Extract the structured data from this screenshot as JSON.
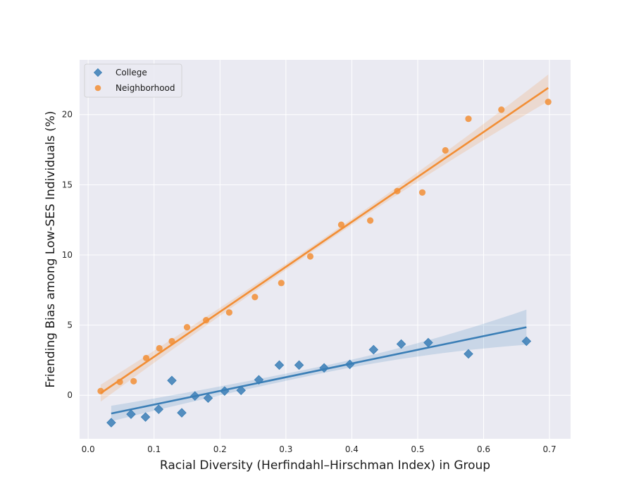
{
  "colors": {
    "background": "#eaeaf2",
    "grid": "#ffffff",
    "college": "#3a7eb6",
    "neighborhood": "#f28e35"
  },
  "chart_data": {
    "type": "scatter",
    "title": "",
    "xlabel": "Racial Diversity (Herfindahl–Hirschman Index) in Group",
    "ylabel": "Friending Bias among Low-SES Individuals (%)",
    "xlim": [
      -0.013,
      0.732
    ],
    "ylim": [
      -3.1,
      23.9
    ],
    "xticks": [
      0.0,
      0.1,
      0.2,
      0.3,
      0.4,
      0.5,
      0.6,
      0.7
    ],
    "xtick_labels": [
      "0.0",
      "0.1",
      "0.2",
      "0.3",
      "0.4",
      "0.5",
      "0.6",
      "0.7"
    ],
    "yticks": [
      0,
      5,
      10,
      15,
      20
    ],
    "ytick_labels": [
      "0",
      "5",
      "10",
      "15",
      "20"
    ],
    "grid": true,
    "legend_position": "top-left",
    "series": [
      {
        "name": "College",
        "marker": "diamond",
        "color": "#3a7eb6",
        "points": [
          [
            0.035,
            -1.95
          ],
          [
            0.065,
            -1.35
          ],
          [
            0.087,
            -1.55
          ],
          [
            0.107,
            -1.0
          ],
          [
            0.127,
            1.05
          ],
          [
            0.142,
            -1.25
          ],
          [
            0.162,
            -0.05
          ],
          [
            0.182,
            -0.2
          ],
          [
            0.207,
            0.3
          ],
          [
            0.232,
            0.35
          ],
          [
            0.259,
            1.1
          ],
          [
            0.29,
            2.15
          ],
          [
            0.32,
            2.15
          ],
          [
            0.358,
            1.95
          ],
          [
            0.397,
            2.2
          ],
          [
            0.433,
            3.25
          ],
          [
            0.475,
            3.65
          ],
          [
            0.516,
            3.75
          ],
          [
            0.577,
            2.95
          ],
          [
            0.665,
            3.85
          ]
        ],
        "fit": {
          "x0": 0.035,
          "y0": -1.3,
          "x1": 0.665,
          "y1": 4.85
        },
        "ci_halfwidth": {
          "start": 0.55,
          "mid": 0.25,
          "end": 1.25
        }
      },
      {
        "name": "Neighborhood",
        "marker": "circle",
        "color": "#f28e35",
        "points": [
          [
            0.019,
            0.3
          ],
          [
            0.048,
            0.95
          ],
          [
            0.069,
            1.0
          ],
          [
            0.088,
            2.65
          ],
          [
            0.108,
            3.35
          ],
          [
            0.127,
            3.85
          ],
          [
            0.15,
            4.85
          ],
          [
            0.179,
            5.35
          ],
          [
            0.214,
            5.9
          ],
          [
            0.253,
            7.0
          ],
          [
            0.293,
            8.0
          ],
          [
            0.337,
            9.9
          ],
          [
            0.384,
            12.15
          ],
          [
            0.428,
            12.45
          ],
          [
            0.469,
            14.55
          ],
          [
            0.507,
            14.45
          ],
          [
            0.542,
            17.45
          ],
          [
            0.577,
            19.7
          ],
          [
            0.627,
            20.35
          ],
          [
            0.698,
            20.9
          ]
        ],
        "fit": {
          "x0": 0.019,
          "y0": 0.15,
          "x1": 0.698,
          "y1": 21.9
        },
        "ci_halfwidth": {
          "start": 0.6,
          "mid": 0.2,
          "end": 0.95
        }
      }
    ]
  }
}
